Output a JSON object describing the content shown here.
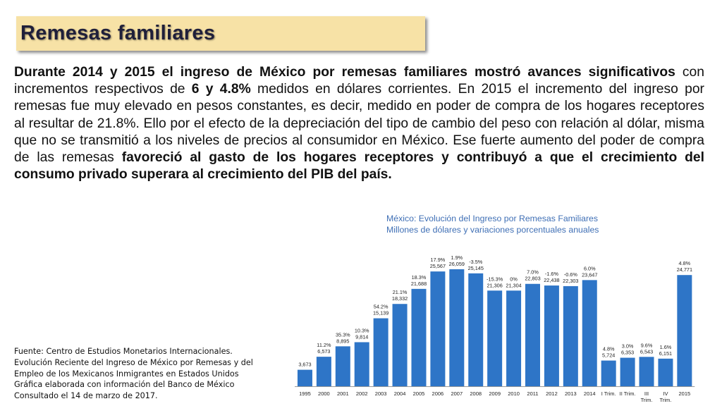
{
  "slide": {
    "title": "Remesas familiares",
    "paragraph": [
      {
        "text": "Durante 2014 y 2015 el ingreso de México por remesas familiares mostró avances significativos",
        "bold": true
      },
      {
        "text": " con incrementos respectivos de ",
        "bold": false
      },
      {
        "text": "6 y 4.8%",
        "bold": true
      },
      {
        "text": " medidos en dólares corrientes. En 2015 el incremento del ingreso por remesas fue muy elevado en pesos constantes, es decir, medido en poder de compra de los hogares receptores al resultar de 21.8%. Ello por el efecto de la depreciación del tipo de cambio del peso con relación al dólar, misma que no se transmitió a los niveles de precios al consumidor en México. Ese fuerte aumento del poder de compra de las remesas ",
        "bold": false
      },
      {
        "text": "favoreció al gasto de los hogares receptores y contribuyó a que el crecimiento del consumo privado superara al crecimiento del PIB del país.",
        "bold": true
      }
    ],
    "source_lines": [
      "Fuente: Centro de Estudios Monetarios Internacionales.",
      "Evolución Reciente del Ingreso de México por Remesas y del",
      "Empleo de los Mexicanos Inmigrantes en Estados Unidos",
      "Gráfica elaborada con información del Banco de México",
      "Consultado el 14 de marzo de 2017."
    ]
  },
  "colors": {
    "bar": "#2e75c7",
    "title_bg": "#f7e2a6",
    "chart_title": "#3f6fb5"
  },
  "chart_data": {
    "type": "bar",
    "title": "México: Evolución del Ingreso por Remesas Familiares",
    "subtitle": "Millones de dólares y variaciones porcentuales anuales",
    "categories": [
      "1995",
      "2000",
      "2001",
      "2002",
      "2003",
      "2004",
      "2005",
      "2006",
      "2007",
      "2008",
      "2009",
      "2010",
      "2011",
      "2012",
      "2013",
      "2014",
      "I Trim.",
      "II Trim.",
      "III Trim.",
      "IV Trim.",
      "2015"
    ],
    "values": [
      3673,
      6573,
      8895,
      9814,
      15139,
      18332,
      21688,
      25567,
      26059,
      25145,
      21306,
      21304,
      22803,
      22438,
      22303,
      23647,
      5724,
      6353,
      6543,
      6151,
      24771
    ],
    "value_labels": [
      "3,673",
      "6,573",
      "8,895",
      "9,814",
      "15,139",
      "18,332",
      "21,688",
      "25,567",
      "26,059",
      "25,145",
      "21,306",
      "21,304",
      "22,803",
      "22,438",
      "22,303",
      "23,647",
      "5,724",
      "6,353",
      "6,543",
      "6,151",
      "24,771"
    ],
    "pct_labels": [
      "",
      "11.2%",
      "35.3%",
      "10.3%",
      "54.2%",
      "21.1%",
      "18.3%",
      "17.9%",
      "1.9%",
      "-3.5%",
      "-15.3%",
      "0%",
      "7.0%",
      "-1.6%",
      "-0.6%",
      "6.0%",
      "4.8%",
      "3.0%",
      "9.6%",
      "1.6%",
      "4.8%"
    ],
    "xlabel": "",
    "ylabel": "",
    "ylim": [
      0,
      26059
    ],
    "grid": false,
    "legend": "none"
  }
}
